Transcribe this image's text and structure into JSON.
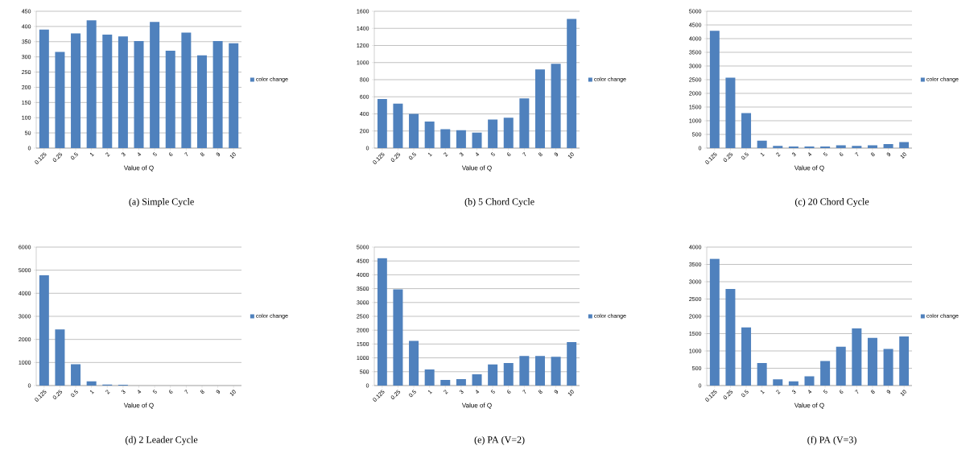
{
  "chart_data": [
    {
      "type": "bar",
      "title": "(a)  Simple Cycle",
      "xlabel": "Value of Q",
      "categories": [
        "0.125",
        "0.25",
        "0.5",
        "1",
        "2",
        "3",
        "4",
        "5",
        "6",
        "7",
        "8",
        "9",
        "10"
      ],
      "series": [
        {
          "name": "color change",
          "color": "#4f81bd",
          "values": [
            390,
            316,
            377,
            420,
            373,
            367,
            352,
            415,
            320,
            380,
            305,
            352,
            345
          ]
        }
      ],
      "ylim": [
        0,
        450
      ],
      "yticks": [
        0,
        50,
        100,
        150,
        200,
        250,
        300,
        350,
        400,
        450
      ],
      "grid": "y",
      "legend": "right"
    },
    {
      "type": "bar",
      "title": "(b)  5 Chord Cycle",
      "xlabel": "Value of Q",
      "categories": [
        "0.125",
        "0.25",
        "0.5",
        "1",
        "2",
        "3",
        "4",
        "5",
        "6",
        "7",
        "8",
        "9",
        "10"
      ],
      "series": [
        {
          "name": "color change",
          "color": "#4f81bd",
          "values": [
            575,
            520,
            400,
            310,
            220,
            210,
            180,
            335,
            355,
            580,
            920,
            985,
            1510
          ]
        }
      ],
      "ylim": [
        0,
        1600
      ],
      "yticks": [
        0,
        200,
        400,
        600,
        800,
        1000,
        1200,
        1400,
        1600
      ],
      "grid": "y",
      "legend": "right"
    },
    {
      "type": "bar",
      "title": "(c)  20 Chord Cycle",
      "xlabel": "Value of Q",
      "categories": [
        "0.125",
        "0.25",
        "0.5",
        "1",
        "2",
        "3",
        "4",
        "5",
        "6",
        "7",
        "8",
        "9",
        "10"
      ],
      "series": [
        {
          "name": "color change",
          "color": "#4f81bd",
          "values": [
            4290,
            2570,
            1280,
            270,
            80,
            60,
            60,
            60,
            100,
            80,
            100,
            150,
            220
          ]
        }
      ],
      "ylim": [
        0,
        5000
      ],
      "yticks": [
        0,
        500,
        1000,
        1500,
        2000,
        2500,
        3000,
        3500,
        4000,
        4500,
        5000
      ],
      "grid": "y",
      "legend": "right"
    },
    {
      "type": "bar",
      "title": "(d)  2 Leader Cycle",
      "xlabel": "Value of Q",
      "categories": [
        "0.125",
        "0.25",
        "0.5",
        "1",
        "2",
        "3",
        "4",
        "5",
        "6",
        "7",
        "8",
        "9",
        "10"
      ],
      "series": [
        {
          "name": "color change",
          "color": "#4f81bd",
          "values": [
            4780,
            2430,
            920,
            180,
            40,
            30,
            0,
            0,
            0,
            0,
            0,
            0,
            0
          ]
        }
      ],
      "ylim": [
        0,
        6000
      ],
      "yticks": [
        0,
        1000,
        2000,
        3000,
        4000,
        5000,
        6000
      ],
      "grid": "y",
      "legend": "right"
    },
    {
      "type": "bar",
      "title": "(e)  PA (V=2)",
      "xlabel": "Value of Q",
      "categories": [
        "0.125",
        "0.25",
        "0.5",
        "1",
        "2",
        "3",
        "4",
        "5",
        "6",
        "7",
        "8",
        "9",
        "10"
      ],
      "series": [
        {
          "name": "color change",
          "color": "#4f81bd",
          "values": [
            4600,
            3470,
            1610,
            580,
            200,
            230,
            410,
            760,
            810,
            1070,
            1070,
            1040,
            1570
          ]
        }
      ],
      "ylim": [
        0,
        5000
      ],
      "yticks": [
        0,
        500,
        1000,
        1500,
        2000,
        2500,
        3000,
        3500,
        4000,
        4500,
        5000
      ],
      "grid": "y",
      "legend": "right"
    },
    {
      "type": "bar",
      "title": "(f)  PA (V=3)",
      "xlabel": "Value of Q",
      "categories": [
        "0.125",
        "0.25",
        "0.5",
        "1",
        "2",
        "3",
        "4",
        "5",
        "6",
        "7",
        "8",
        "9",
        "10"
      ],
      "series": [
        {
          "name": "color change",
          "color": "#4f81bd",
          "values": [
            3660,
            2790,
            1680,
            650,
            180,
            120,
            270,
            710,
            1120,
            1650,
            1380,
            1060,
            1420
          ]
        }
      ],
      "ylim": [
        0,
        4000
      ],
      "yticks": [
        0,
        500,
        1000,
        1500,
        2000,
        2500,
        3000,
        3500,
        4000
      ],
      "grid": "y",
      "legend": "right"
    }
  ]
}
